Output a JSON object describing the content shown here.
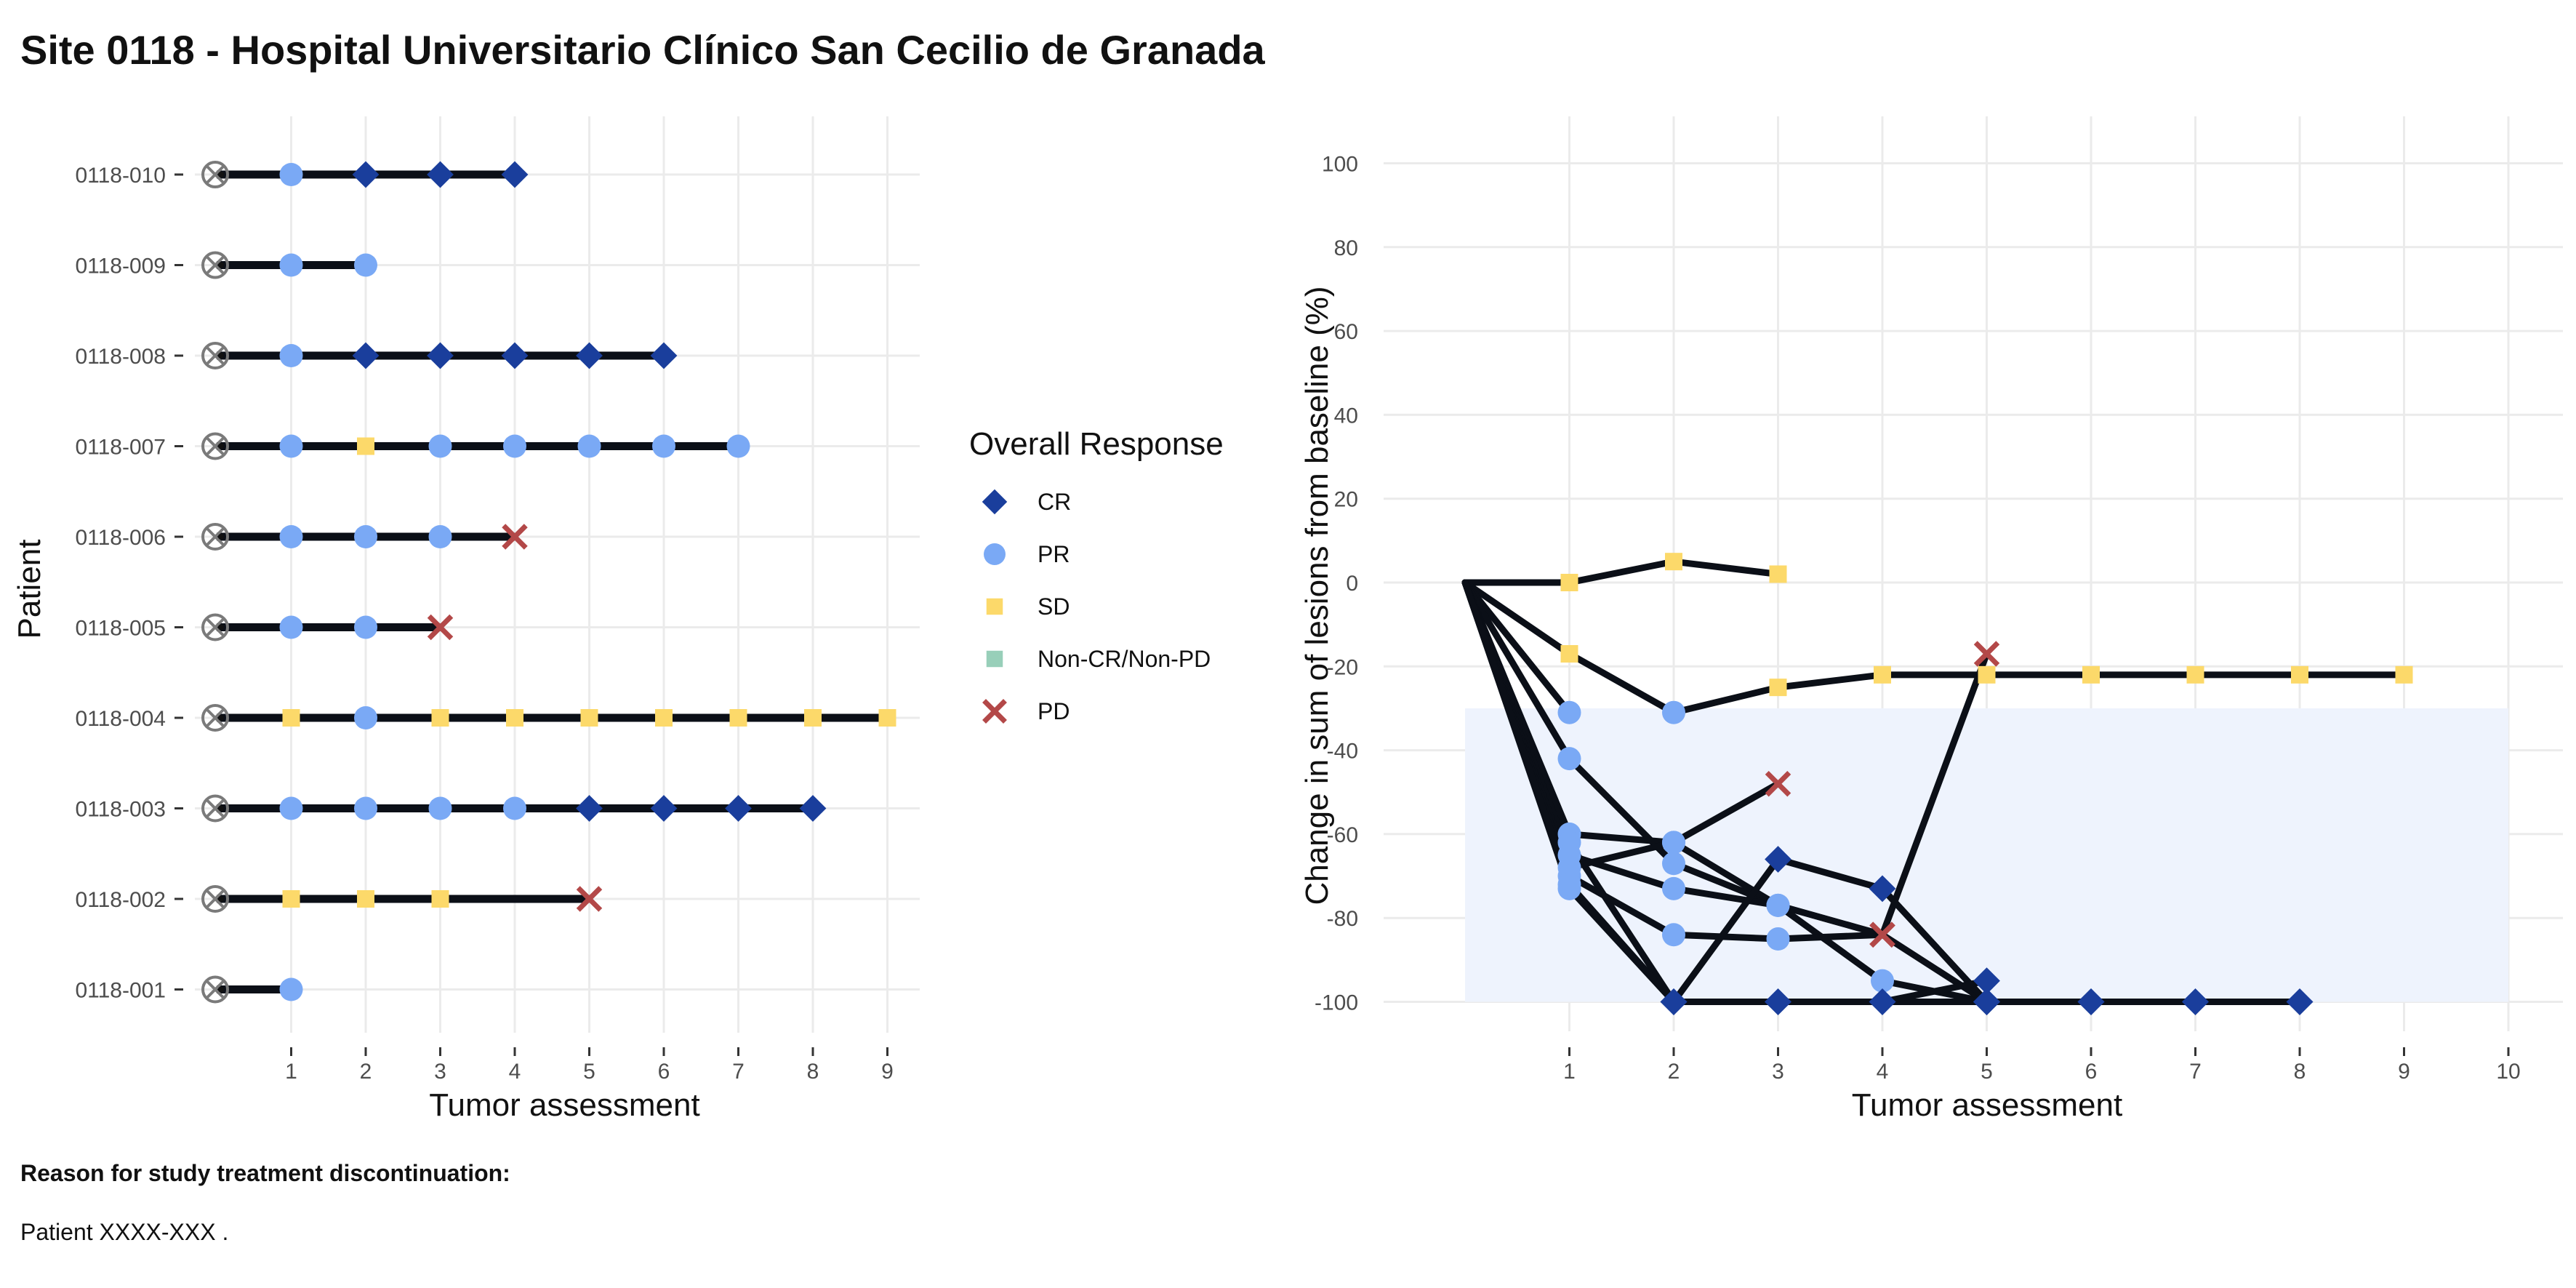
{
  "title": "Site 0118 - Hospital Universitario Clínico San Cecilio de Granada",
  "footer": {
    "heading": "Reason for study treatment discontinuation:",
    "text": "Patient XXXX-XXX ."
  },
  "colors": {
    "CR": "#1a3e9c",
    "PR": "#7aa9f5",
    "SD": "#fcd96a",
    "Non-CR/Non-PD": "#98cfb9",
    "PD": "#b34848",
    "line": "#0b0f17",
    "grid": "#ebebeb",
    "band": "#eef3fd",
    "baseline_marker": "#7a7a7a"
  },
  "legend": {
    "title": "Overall Response",
    "items": [
      {
        "label": "CR",
        "key": "CR",
        "icon": "diamond"
      },
      {
        "label": "PR",
        "key": "PR",
        "icon": "circle"
      },
      {
        "label": "SD",
        "key": "SD",
        "icon": "square"
      },
      {
        "label": "Non-CR/Non-PD",
        "key": "Non-CR/Non-PD",
        "icon": "square"
      },
      {
        "label": "PD",
        "key": "PD",
        "icon": "cross"
      }
    ]
  },
  "chart_data": [
    {
      "type": "swimmer",
      "xlabel": "Tumor assessment",
      "ylabel": "Patient",
      "xticks": [
        1,
        2,
        3,
        4,
        5,
        6,
        7,
        8,
        9
      ],
      "xlim": [
        0,
        9.5
      ],
      "baseline_marker": "crossed-circle-icon",
      "patients": [
        {
          "id": "0118-010",
          "responses": [
            "PR",
            "CR",
            "CR",
            "CR"
          ]
        },
        {
          "id": "0118-009",
          "responses": [
            "PR",
            "PR"
          ]
        },
        {
          "id": "0118-008",
          "responses": [
            "PR",
            "CR",
            "CR",
            "CR",
            "CR",
            "CR"
          ]
        },
        {
          "id": "0118-007",
          "responses": [
            "PR",
            "SD",
            "PR",
            "PR",
            "PR",
            "PR",
            "PR"
          ]
        },
        {
          "id": "0118-006",
          "responses": [
            "PR",
            "PR",
            "PR",
            "PD"
          ]
        },
        {
          "id": "0118-005",
          "responses": [
            "PR",
            "PR",
            "PD"
          ]
        },
        {
          "id": "0118-004",
          "responses": [
            "SD",
            "PR",
            "SD",
            "SD",
            "SD",
            "SD",
            "SD",
            "SD",
            "SD"
          ]
        },
        {
          "id": "0118-003",
          "responses": [
            "PR",
            "PR",
            "PR",
            "PR",
            "CR",
            "CR",
            "CR",
            "CR"
          ]
        },
        {
          "id": "0118-002",
          "responses": [
            "SD",
            "SD",
            "SD",
            null,
            "PD"
          ]
        },
        {
          "id": "0118-001",
          "responses": [
            "PR"
          ]
        }
      ]
    },
    {
      "type": "line",
      "xlabel": "Tumor assessment",
      "ylabel": "Change in sum of lesions from baseline (%)",
      "xticks": [
        1,
        2,
        3,
        4,
        5,
        6,
        7,
        8,
        9,
        10
      ],
      "yticks": [
        100,
        80,
        60,
        40,
        20,
        0,
        -20,
        -40,
        -60,
        -80,
        -100
      ],
      "xlim": [
        -0.2,
        10.5
      ],
      "ylim": [
        -110,
        110
      ],
      "band": {
        "x": [
          0,
          10
        ],
        "y": [
          -100,
          -30
        ]
      },
      "series": [
        {
          "points": [
            [
              0,
              0
            ],
            [
              1,
              0
            ],
            [
              2,
              5
            ],
            [
              3,
              2
            ]
          ],
          "responses": [
            null,
            "SD",
            "SD",
            "SD"
          ]
        },
        {
          "points": [
            [
              0,
              0
            ],
            [
              1,
              -17
            ],
            [
              2,
              -31
            ],
            [
              3,
              -25
            ],
            [
              4,
              -22
            ],
            [
              5,
              -22
            ],
            [
              6,
              -22
            ],
            [
              7,
              -22
            ],
            [
              8,
              -22
            ],
            [
              9,
              -22
            ]
          ],
          "responses": [
            null,
            "SD",
            "PR",
            "SD",
            "SD",
            "SD",
            "SD",
            "SD",
            "SD",
            "SD"
          ]
        },
        {
          "points": [
            [
              0,
              0
            ],
            [
              1,
              -31
            ]
          ],
          "responses": [
            null,
            "PR"
          ]
        },
        {
          "points": [
            [
              0,
              0
            ],
            [
              1,
              -42
            ],
            [
              2,
              -67
            ],
            [
              3,
              -77
            ],
            [
              4,
              -95
            ],
            [
              5,
              -100
            ],
            [
              6,
              -100
            ],
            [
              7,
              -100
            ],
            [
              8,
              -100
            ]
          ],
          "responses": [
            null,
            "PR",
            "PR",
            "PR",
            "PR",
            "CR",
            "CR",
            "CR",
            "CR"
          ]
        },
        {
          "points": [
            [
              0,
              0
            ],
            [
              1,
              -60
            ],
            [
              2,
              -62
            ],
            [
              3,
              -48
            ]
          ],
          "responses": [
            null,
            "PR",
            "PR",
            "PD"
          ]
        },
        {
          "points": [
            [
              0,
              0
            ],
            [
              1,
              -62
            ],
            [
              2,
              -100
            ],
            [
              3,
              -100
            ],
            [
              4,
              -100
            ],
            [
              5,
              -100
            ],
            [
              6,
              -100
            ]
          ],
          "responses": [
            null,
            "PR",
            "CR",
            "CR",
            "CR",
            "CR",
            "CR"
          ]
        },
        {
          "points": [
            [
              0,
              0
            ],
            [
              1,
              -65
            ],
            [
              2,
              -73
            ],
            [
              3,
              -77
            ],
            [
              4,
              -84
            ]
          ],
          "responses": [
            null,
            "PR",
            "PR",
            "PR",
            "PD"
          ]
        },
        {
          "points": [
            [
              0,
              0
            ],
            [
              1,
              -68
            ],
            [
              2,
              -62
            ],
            [
              3,
              -77
            ],
            [
              4,
              -84
            ],
            [
              5,
              -100
            ]
          ],
          "responses": [
            null,
            "PR",
            "PR",
            "PR",
            "PD",
            "CR"
          ]
        },
        {
          "points": [
            [
              0,
              0
            ],
            [
              1,
              -70
            ],
            [
              2,
              -84
            ],
            [
              3,
              -85
            ],
            [
              4,
              -84
            ],
            [
              5,
              -17
            ]
          ],
          "responses": [
            null,
            "PR",
            "PR",
            "PR",
            "PD",
            "PD"
          ]
        },
        {
          "points": [
            [
              0,
              0
            ],
            [
              1,
              -73
            ],
            [
              2,
              -100
            ],
            [
              3,
              -66
            ],
            [
              4,
              -73
            ],
            [
              5,
              -100
            ],
            [
              6,
              -100
            ],
            [
              7,
              -100
            ],
            [
              8,
              -100
            ]
          ],
          "responses": [
            null,
            "PR",
            "CR",
            "CR",
            "CR",
            "CR",
            "CR",
            "CR",
            "CR"
          ]
        },
        {
          "points": [
            [
              0,
              0
            ],
            [
              1,
              -72
            ],
            [
              2,
              -100
            ],
            [
              3,
              -100
            ],
            [
              4,
              -100
            ],
            [
              5,
              -95
            ]
          ],
          "responses": [
            null,
            "PR",
            "CR",
            "CR",
            "CR",
            "CR"
          ]
        }
      ]
    }
  ]
}
